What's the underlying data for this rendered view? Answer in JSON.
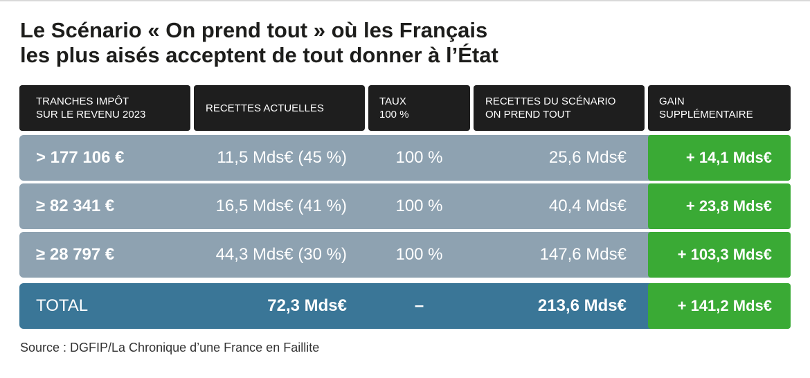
{
  "title": {
    "line1": "Le Scénario « On prend tout » où les Français",
    "line2": "les plus aisés acceptent de tout donner à l’État"
  },
  "chart_data": {
    "type": "table",
    "columns": [
      "TRANCHES IMPÔT\nSUR LE REVENU 2023",
      "RECETTES ACTUELLES",
      "TAUX\n100 %",
      "RECETTES DU SCÉNARIO\nON PREND TOUT",
      "GAIN\nSUPPLÉMENTAIRE"
    ],
    "rows": [
      {
        "tranche": "> 177 106 €",
        "recettes_actuelles": "11,5 Mds€ (45 %)",
        "taux": "100 %",
        "recettes_scenario": "25,6 Mds€",
        "gain": "+ 14,1 Mds€"
      },
      {
        "tranche": "≥ 82 341 €",
        "recettes_actuelles": "16,5 Mds€ (41 %)",
        "taux": "100 %",
        "recettes_scenario": "40,4 Mds€",
        "gain": "+ 23,8 Mds€"
      },
      {
        "tranche": "≥ 28 797 €",
        "recettes_actuelles": "44,3 Mds€ (30 %)",
        "taux": "100 %",
        "recettes_scenario": "147,6 Mds€",
        "gain": "+ 103,3 Mds€"
      }
    ],
    "total": {
      "label": "TOTAL",
      "recettes_actuelles": "72,3 Mds€",
      "taux": "–",
      "recettes_scenario": "213,6 Mds€",
      "gain": "+ 141,2 Mds€"
    }
  },
  "colors": {
    "header_bg": "#1e1e1e",
    "row_bg": "#8ea2b1",
    "total_bg": "#3a7697",
    "gain_bg": "#3aaa35"
  },
  "source": "Source : DGFIP/La Chronique d’une France en Faillite"
}
